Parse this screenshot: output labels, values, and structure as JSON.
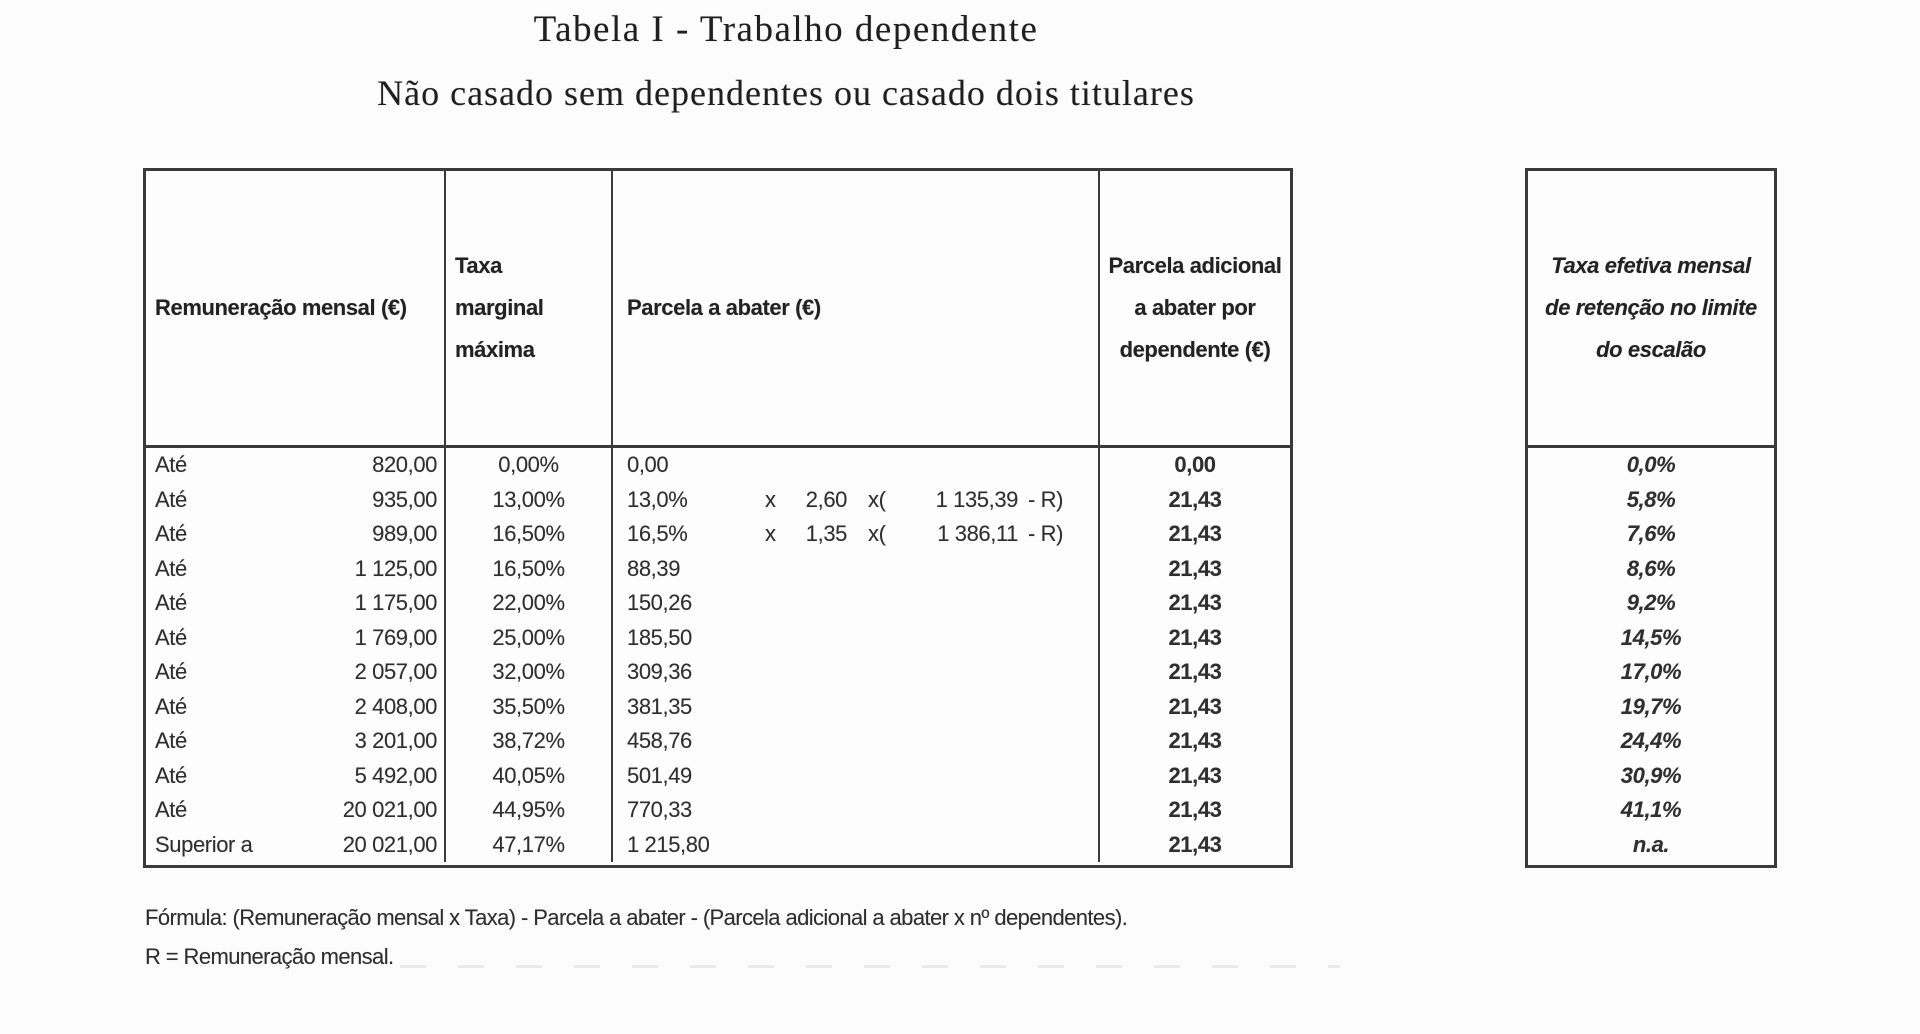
{
  "page": {
    "title": "Tabela I - Trabalho dependente",
    "subtitle": "Não casado sem dependentes ou casado dois titulares"
  },
  "colors": {
    "background": "#fcfcfc",
    "table_border": "#3a3a3a",
    "text": "#2b2b2b"
  },
  "main_table": {
    "headers": {
      "col1": "Remuneração mensal (€)",
      "col2_line1": "Taxa",
      "col2_line2": "marginal",
      "col2_line3": "máxima",
      "col3": "Parcela a abater (€)",
      "col4_line1": "Parcela adicional",
      "col4_line2": "a abater por",
      "col4_line3": "dependente (€)"
    },
    "rows": [
      {
        "prefix": "Até",
        "limit": "820,00",
        "rate": "0,00%",
        "parcela": "0,00",
        "px": "",
        "pf": "",
        "pxo": "",
        "pamt": "",
        "pr": "",
        "dep": "0,00"
      },
      {
        "prefix": "Até",
        "limit": "935,00",
        "rate": "13,00%",
        "parcela": "13,0%",
        "px": "x",
        "pf": "2,60",
        "pxo": "x(",
        "pamt": "1 135,39",
        "pr": "- R)",
        "dep": "21,43"
      },
      {
        "prefix": "Até",
        "limit": "989,00",
        "rate": "16,50%",
        "parcela": "16,5%",
        "px": "x",
        "pf": "1,35",
        "pxo": "x(",
        "pamt": "1 386,11",
        "pr": "- R)",
        "dep": "21,43"
      },
      {
        "prefix": "Até",
        "limit": "1 125,00",
        "rate": "16,50%",
        "parcela": "88,39",
        "px": "",
        "pf": "",
        "pxo": "",
        "pamt": "",
        "pr": "",
        "dep": "21,43"
      },
      {
        "prefix": "Até",
        "limit": "1 175,00",
        "rate": "22,00%",
        "parcela": "150,26",
        "px": "",
        "pf": "",
        "pxo": "",
        "pamt": "",
        "pr": "",
        "dep": "21,43"
      },
      {
        "prefix": "Até",
        "limit": "1 769,00",
        "rate": "25,00%",
        "parcela": "185,50",
        "px": "",
        "pf": "",
        "pxo": "",
        "pamt": "",
        "pr": "",
        "dep": "21,43"
      },
      {
        "prefix": "Até",
        "limit": "2 057,00",
        "rate": "32,00%",
        "parcela": "309,36",
        "px": "",
        "pf": "",
        "pxo": "",
        "pamt": "",
        "pr": "",
        "dep": "21,43"
      },
      {
        "prefix": "Até",
        "limit": "2 408,00",
        "rate": "35,50%",
        "parcela": "381,35",
        "px": "",
        "pf": "",
        "pxo": "",
        "pamt": "",
        "pr": "",
        "dep": "21,43"
      },
      {
        "prefix": "Até",
        "limit": "3 201,00",
        "rate": "38,72%",
        "parcela": "458,76",
        "px": "",
        "pf": "",
        "pxo": "",
        "pamt": "",
        "pr": "",
        "dep": "21,43"
      },
      {
        "prefix": "Até",
        "limit": "5 492,00",
        "rate": "40,05%",
        "parcela": "501,49",
        "px": "",
        "pf": "",
        "pxo": "",
        "pamt": "",
        "pr": "",
        "dep": "21,43"
      },
      {
        "prefix": "Até",
        "limit": "20 021,00",
        "rate": "44,95%",
        "parcela": "770,33",
        "px": "",
        "pf": "",
        "pxo": "",
        "pamt": "",
        "pr": "",
        "dep": "21,43"
      },
      {
        "prefix": "Superior a",
        "limit": "20 021,00",
        "rate": "47,17%",
        "parcela": "1 215,80",
        "px": "",
        "pf": "",
        "pxo": "",
        "pamt": "",
        "pr": "",
        "dep": "21,43"
      }
    ]
  },
  "side_table": {
    "header_line1": "Taxa efetiva mensal",
    "header_line2": "de retenção no limite",
    "header_line3": "do escalão",
    "rows": [
      {
        "value": "0,0%"
      },
      {
        "value": "5,8%"
      },
      {
        "value": "7,6%"
      },
      {
        "value": "8,6%"
      },
      {
        "value": "9,2%"
      },
      {
        "value": "14,5%"
      },
      {
        "value": "17,0%"
      },
      {
        "value": "19,7%"
      },
      {
        "value": "24,4%"
      },
      {
        "value": "30,9%"
      },
      {
        "value": "41,1%"
      },
      {
        "value": "n.a."
      }
    ]
  },
  "footer": {
    "line1": "Fórmula: (Remuneração mensal x Taxa) - Parcela a abater - (Parcela adicional a abater x nº dependentes).",
    "line2": "R = Remuneração mensal."
  }
}
